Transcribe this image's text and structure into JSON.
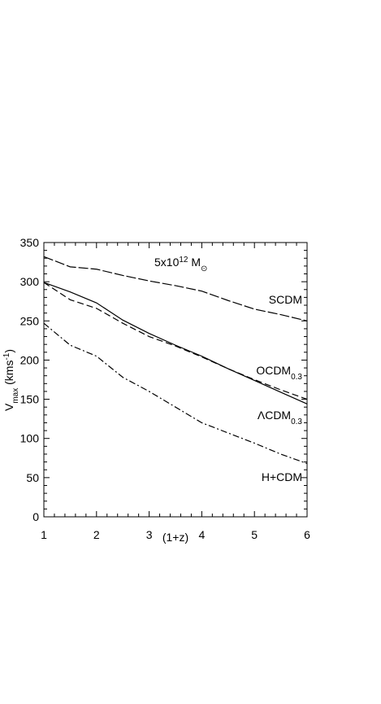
{
  "chart_data": {
    "type": "line",
    "annotation": [
      {
        "text": "5x10"
      },
      {
        "text": "12",
        "script": "sup"
      },
      {
        "text": " M"
      },
      {
        "text": "⊙",
        "script": "sub"
      }
    ],
    "ylabel": [
      {
        "text": "V"
      },
      {
        "text": "max",
        "script": "sub"
      },
      {
        "text": " (kms"
      },
      {
        "text": "-1",
        "script": "sup"
      },
      {
        "text": ")"
      }
    ],
    "xlabel": "(1+z)",
    "x": [
      1,
      1.5,
      2,
      2.5,
      3,
      3.5,
      4,
      4.5,
      5,
      5.5,
      6
    ],
    "xlim": [
      1,
      6
    ],
    "xticks": [
      1,
      2,
      3,
      4,
      5,
      6
    ],
    "ylim": [
      0,
      350
    ],
    "yticks": [
      0,
      50,
      100,
      150,
      200,
      250,
      300,
      350
    ],
    "series": [
      {
        "name": "SCDM",
        "color": "#000000",
        "dash": "12,3",
        "values": [
          332,
          319,
          316,
          308,
          301,
          295,
          288,
          276,
          265,
          258,
          250
        ]
      },
      {
        "name": "OCDM",
        "name_sub": "0.3",
        "color": "#000000",
        "dash": "8,4",
        "values": [
          299,
          277,
          266,
          247,
          230,
          218,
          204,
          189,
          175,
          162,
          150
        ]
      },
      {
        "name": "ΛCDM",
        "name_sub": "0.3",
        "color": "#000000",
        "dash": "none",
        "values": [
          299,
          287,
          273,
          251,
          234,
          219,
          205,
          189,
          174,
          159,
          144
        ]
      },
      {
        "name": "H+CDM",
        "color": "#000000",
        "dash": "8,3,2,3",
        "values": [
          247,
          219,
          205,
          178,
          160,
          140,
          120,
          107,
          94,
          80,
          68
        ]
      }
    ]
  }
}
